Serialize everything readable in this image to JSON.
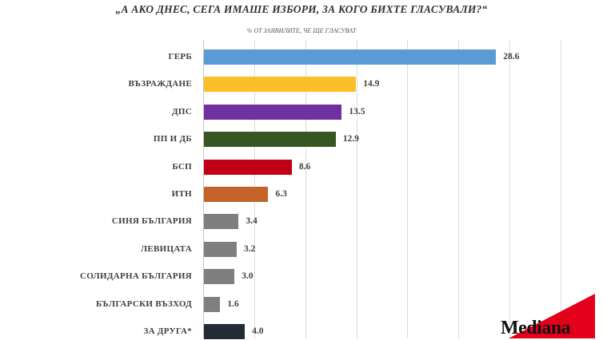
{
  "header": {
    "title": "„А АКО ДНЕС, СЕГА ИМАШЕ ИЗБОРИ, ЗА КОГО БИХТЕ ГЛАСУВАЛИ?“",
    "subtitle": "% ОТ ЗАЯВИЛИТЕ, ЧЕ ЩЕ ГЛАСУВАТ"
  },
  "logo": {
    "text": "Mediana",
    "accent_color": "#e3001b"
  },
  "chart_data": {
    "type": "bar",
    "orientation": "horizontal",
    "title": "„А АКО ДНЕС, СЕГА ИМАШЕ ИЗБОРИ, ЗА КОГО БИХТЕ ГЛАСУВАЛИ?“",
    "subtitle": "% ОТ ЗАЯВИЛИТЕ, ЧЕ ЩЕ ГЛАСУВАТ",
    "xlabel": "",
    "ylabel": "",
    "xlim": [
      0,
      40
    ],
    "grid": true,
    "categories": [
      "ГЕРБ",
      "ВЪЗРАЖДАНЕ",
      "ДПС",
      "ПП И ДБ",
      "БСП",
      "ИТН",
      "СИНЯ БЪЛГАРИЯ",
      "ЛЕВИЦАТА",
      "СОЛИДАРНА БЪЛГАРИЯ",
      "БЪЛГАРСКИ ВЪЗХОД",
      "ЗА ДРУГА*"
    ],
    "values": [
      28.6,
      14.9,
      13.5,
      12.9,
      8.6,
      6.3,
      3.4,
      3.2,
      3.0,
      1.6,
      4.0
    ],
    "value_labels": [
      "28.6",
      "14.9",
      "13.5",
      "12.9",
      "8.6",
      "6.3",
      "3.4",
      "3.2",
      "3.0",
      "1.6",
      "4.0"
    ],
    "colors": [
      "#5b9bd5",
      "#fbbf2a",
      "#7030a0",
      "#375623",
      "#c00018",
      "#c5622a",
      "#7f7f7f",
      "#7f7f7f",
      "#7f7f7f",
      "#7f7f7f",
      "#252b36"
    ]
  }
}
